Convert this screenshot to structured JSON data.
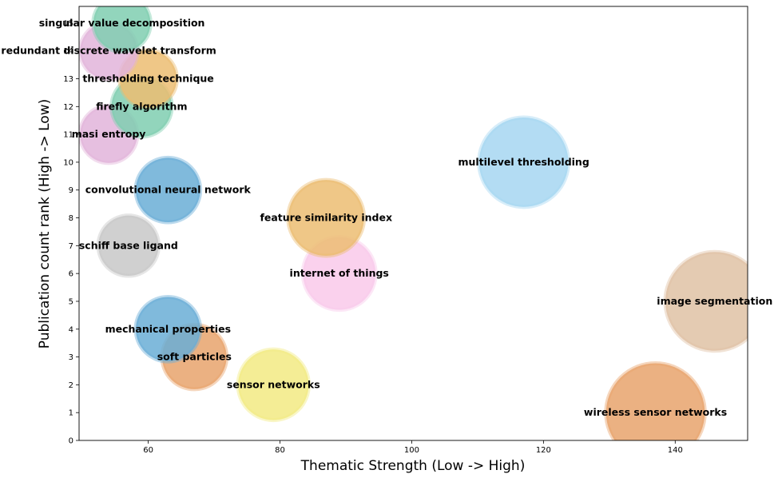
{
  "chart_data": {
    "type": "scatter",
    "title": "",
    "xlabel": "Thematic Strength (Low -> High)",
    "ylabel": "Publication count rank (High -> Low)",
    "xlim": [
      49.5,
      151
    ],
    "ylim": [
      0,
      15.6
    ],
    "x_ticks": [
      60,
      80,
      100,
      120,
      140
    ],
    "y_ticks": [
      0,
      1,
      2,
      3,
      4,
      5,
      6,
      7,
      8,
      9,
      10,
      11,
      12,
      13,
      14,
      15
    ],
    "grid": false,
    "points": [
      {
        "label": "wireless sensor networks",
        "x": 137,
        "y": 1,
        "size": 9.5,
        "color": "#e8a36c"
      },
      {
        "label": "sensor networks",
        "x": 79,
        "y": 2,
        "size": 6.8,
        "color": "#f2ea82"
      },
      {
        "label": "soft particles",
        "x": 67,
        "y": 3,
        "size": 6.2,
        "color": "#e8a36c"
      },
      {
        "label": "mechanical properties",
        "x": 63,
        "y": 4,
        "size": 6.2,
        "color": "#6aaed6"
      },
      {
        "label": "image segmentation",
        "x": 146,
        "y": 5,
        "size": 9.5,
        "color": "#dfc2a5"
      },
      {
        "label": "internet of things",
        "x": 89,
        "y": 6,
        "size": 7.0,
        "color": "#f9c9ea"
      },
      {
        "label": "schiff base ligand",
        "x": 57,
        "y": 7,
        "size": 5.8,
        "color": "#c8c8c8"
      },
      {
        "label": "feature similarity index",
        "x": 87,
        "y": 8,
        "size": 7.3,
        "color": "#ecbd72"
      },
      {
        "label": "convolutional neural network",
        "x": 63,
        "y": 9,
        "size": 6.2,
        "color": "#6aaed6"
      },
      {
        "label": "multilevel thresholding",
        "x": 117,
        "y": 10,
        "size": 8.6,
        "color": "#a6d6f1"
      },
      {
        "label": "masi entropy",
        "x": 54,
        "y": 11,
        "size": 5.5,
        "color": "#e2b4da"
      },
      {
        "label": "firefly algorithm",
        "x": 59,
        "y": 12,
        "size": 5.8,
        "color": "#7fceb0"
      },
      {
        "label": "thresholding technique",
        "x": 60,
        "y": 13,
        "size": 5.5,
        "color": "#ecbd72"
      },
      {
        "label": "redundant discrete wavelet transform",
        "x": 54,
        "y": 14,
        "size": 5.5,
        "color": "#e2b4da"
      },
      {
        "label": "singular value decomposition",
        "x": 56,
        "y": 15,
        "size": 5.5,
        "color": "#7fceb0"
      }
    ]
  }
}
